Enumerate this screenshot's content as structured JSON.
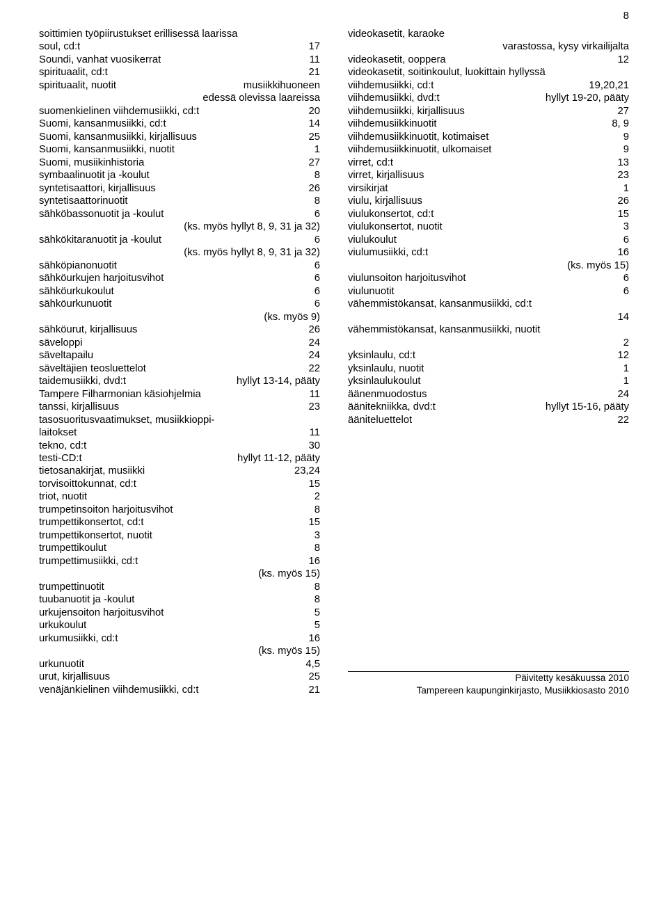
{
  "page_number": "8",
  "left_column": [
    {
      "type": "single",
      "text": "soittimien työpiirustukset erillisessä laarissa"
    },
    {
      "type": "row",
      "label": "soul, cd:t",
      "val": "17"
    },
    {
      "type": "row",
      "label": "Soundi, vanhat vuosikerrat",
      "val": "11"
    },
    {
      "type": "row",
      "label": "spirituaalit, cd:t",
      "val": "21"
    },
    {
      "type": "row",
      "label": "spirituaalit, nuotit",
      "val": "musiikkihuoneen"
    },
    {
      "type": "right",
      "text": "edessä olevissa laareissa"
    },
    {
      "type": "row",
      "label": "suomenkielinen viihdemusiikki, cd:t",
      "val": "20"
    },
    {
      "type": "row",
      "label": "Suomi, kansanmusiikki, cd:t",
      "val": "14"
    },
    {
      "type": "row",
      "label": "Suomi, kansanmusiikki, kirjallisuus",
      "val": "25"
    },
    {
      "type": "row",
      "label": "Suomi, kansanmusiikki, nuotit",
      "val": "1"
    },
    {
      "type": "row",
      "label": "Suomi, musiikinhistoria",
      "val": "27"
    },
    {
      "type": "row",
      "label": "symbaalinuotit ja -koulut",
      "val": "8"
    },
    {
      "type": "row",
      "label": "syntetisaattori, kirjallisuus",
      "val": "26"
    },
    {
      "type": "row",
      "label": "syntetisaattorinuotit",
      "val": "8"
    },
    {
      "type": "row",
      "label": "sähköbassonuotit ja -koulut",
      "val": "6"
    },
    {
      "type": "right",
      "text": "(ks. myös hyllyt 8, 9, 31 ja 32)"
    },
    {
      "type": "row",
      "label": "sähkökitaranuotit ja -koulut",
      "val": "6"
    },
    {
      "type": "right",
      "text": "(ks. myös hyllyt 8, 9, 31 ja 32)"
    },
    {
      "type": "row",
      "label": "sähköpianonuotit",
      "val": "6"
    },
    {
      "type": "row",
      "label": "sähköurkujen harjoitusvihot",
      "val": "6"
    },
    {
      "type": "row",
      "label": "sähköurkukoulut",
      "val": "6"
    },
    {
      "type": "row",
      "label": "sähköurkunuotit",
      "val": "6"
    },
    {
      "type": "right",
      "text": "(ks. myös 9)"
    },
    {
      "type": "row",
      "label": "sähköurut, kirjallisuus",
      "val": "26"
    },
    {
      "type": "row",
      "label": "säveloppi",
      "val": "24"
    },
    {
      "type": "row",
      "label": "säveltapailu",
      "val": "24"
    },
    {
      "type": "row",
      "label": "säveltäjien teosluettelot",
      "val": "22"
    },
    {
      "type": "row",
      "label": "taidemusiikki, dvd:t",
      "val": "hyllyt 13-14, pääty"
    },
    {
      "type": "row",
      "label": "Tampere Filharmonian käsiohjelmia",
      "val": "11"
    },
    {
      "type": "row",
      "label": "tanssi, kirjallisuus",
      "val": "23"
    },
    {
      "type": "single",
      "text": "tasosuoritusvaatimukset, musiikkioppi-"
    },
    {
      "type": "row",
      "label": "laitokset",
      "val": "11"
    },
    {
      "type": "row",
      "label": "tekno, cd:t",
      "val": "30"
    },
    {
      "type": "row",
      "label": "testi-CD:t",
      "val": "hyllyt 11-12, pääty"
    },
    {
      "type": "row",
      "label": "tietosanakirjat, musiikki",
      "val": "23,24"
    },
    {
      "type": "row",
      "label": "torvisoittokunnat, cd:t",
      "val": "15"
    },
    {
      "type": "row",
      "label": "triot, nuotit",
      "val": "2"
    },
    {
      "type": "row",
      "label": "trumpetinsoiton harjoitusvihot",
      "val": "8"
    },
    {
      "type": "row",
      "label": "trumpettikonsertot, cd:t",
      "val": "15"
    },
    {
      "type": "row",
      "label": "trumpettikonsertot, nuotit",
      "val": "3"
    },
    {
      "type": "row",
      "label": "trumpettikoulut",
      "val": "8"
    },
    {
      "type": "row",
      "label": "trumpettimusiikki, cd:t",
      "val": "16"
    },
    {
      "type": "right",
      "text": "(ks. myös 15)"
    },
    {
      "type": "row",
      "label": "trumpettinuotit",
      "val": "8"
    },
    {
      "type": "row",
      "label": "tuubanuotit ja -koulut",
      "val": "8"
    },
    {
      "type": "row",
      "label": "urkujensoiton harjoitusvihot",
      "val": "5"
    },
    {
      "type": "row",
      "label": "urkukoulut",
      "val": "5"
    },
    {
      "type": "row",
      "label": "urkumusiikki, cd:t",
      "val": "16"
    },
    {
      "type": "right",
      "text": "(ks. myös 15)"
    },
    {
      "type": "row",
      "label": "urkunuotit",
      "val": "4,5"
    },
    {
      "type": "row",
      "label": "urut, kirjallisuus",
      "val": "25"
    },
    {
      "type": "row",
      "label": "venäjänkielinen viihdemusiikki, cd:t",
      "val": "21"
    }
  ],
  "right_column": [
    {
      "type": "single",
      "text": "videokasetit, karaoke"
    },
    {
      "type": "right",
      "text": "varastossa, kysy virkailijalta"
    },
    {
      "type": "row",
      "label": "videokasetit, ooppera",
      "val": "12"
    },
    {
      "type": "single",
      "text": "videokasetit, soitinkoulut, luokittain hyllyssä"
    },
    {
      "type": "row",
      "label": "viihdemusiikki, cd:t",
      "val": "19,20,21"
    },
    {
      "type": "row",
      "label": "viihdemusiikki, dvd:t",
      "val": "hyllyt 19-20, pääty"
    },
    {
      "type": "row",
      "label": "viihdemusiikki, kirjallisuus",
      "val": "27"
    },
    {
      "type": "row",
      "label": "viihdemusiikkinuotit",
      "val": "8, 9"
    },
    {
      "type": "row",
      "label": "viihdemusiikkinuotit, kotimaiset",
      "val": "9"
    },
    {
      "type": "row",
      "label": "viihdemusiikkinuotit, ulkomaiset",
      "val": "9"
    },
    {
      "type": "row",
      "label": "virret, cd:t",
      "val": "13"
    },
    {
      "type": "row",
      "label": "virret, kirjallisuus",
      "val": "23"
    },
    {
      "type": "row",
      "label": "virsikirjat",
      "val": "1"
    },
    {
      "type": "row",
      "label": "viulu, kirjallisuus",
      "val": "26"
    },
    {
      "type": "row",
      "label": "viulukonsertot, cd:t",
      "val": "15"
    },
    {
      "type": "row",
      "label": "viulukonsertot, nuotit",
      "val": "3"
    },
    {
      "type": "row",
      "label": "viulukoulut",
      "val": "6"
    },
    {
      "type": "row",
      "label": "viulumusiikki, cd:t",
      "val": "16"
    },
    {
      "type": "right",
      "text": "(ks. myös 15)"
    },
    {
      "type": "row",
      "label": "viulunsoiton harjoitusvihot",
      "val": "6"
    },
    {
      "type": "row",
      "label": "viulunuotit",
      "val": "6"
    },
    {
      "type": "single",
      "text": "vähemmistökansat, kansanmusiikki, cd:t"
    },
    {
      "type": "right",
      "text": "14"
    },
    {
      "type": "single",
      "text": "vähemmistökansat, kansanmusiikki, nuotit"
    },
    {
      "type": "right",
      "text": "2"
    },
    {
      "type": "row",
      "label": "yksinlaulu, cd:t",
      "val": "12"
    },
    {
      "type": "row",
      "label": "yksinlaulu, nuotit",
      "val": "1"
    },
    {
      "type": "row",
      "label": "yksinlaulukoulut",
      "val": "1"
    },
    {
      "type": "row",
      "label": "äänenmuodostus",
      "val": "24"
    },
    {
      "type": "row",
      "label": "äänitekniikka, dvd:t",
      "val": "hyllyt 15-16, pääty"
    },
    {
      "type": "row",
      "label": "ääniteluettelot",
      "val": "22"
    }
  ],
  "footer": {
    "line1": "Päivitetty kesäkuussa 2010",
    "line2": "Tampereen kaupunginkirjasto, Musiikkiosasto 2010"
  }
}
